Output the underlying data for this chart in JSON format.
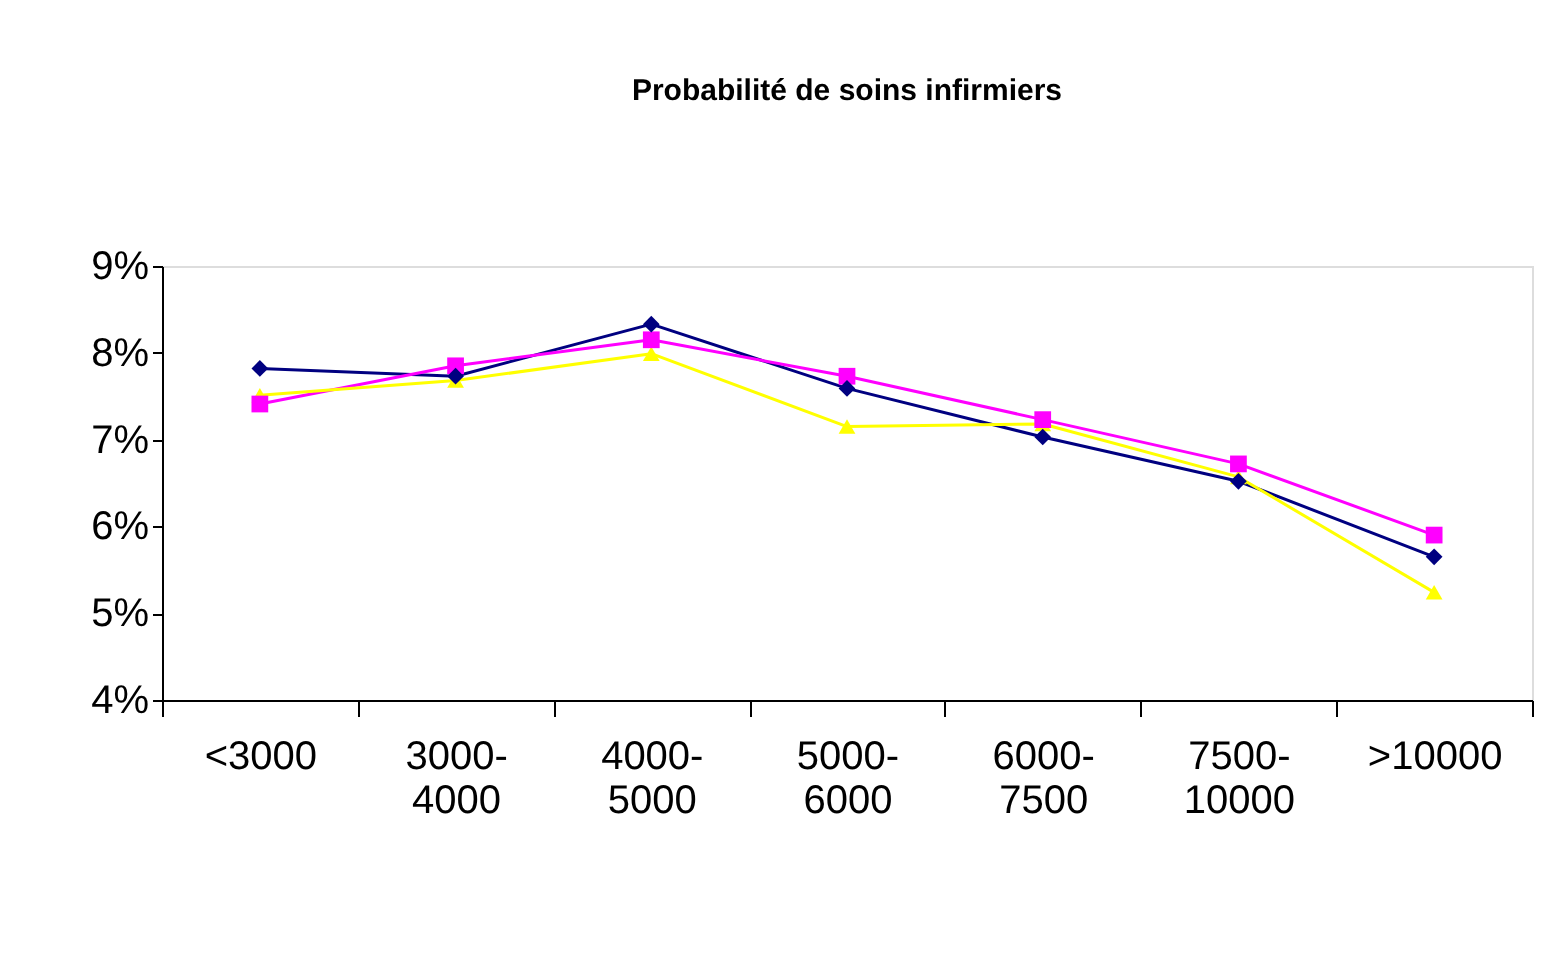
{
  "chart_data": {
    "type": "line",
    "title": "Probabilité de soins infirmiers",
    "categories": [
      "<3000",
      "3000-4000",
      "4000-5000",
      "5000-6000",
      "6000-7500",
      "7500-10000",
      ">10000"
    ],
    "series": [
      {
        "color": "#000080",
        "marker": "diamond",
        "values": [
          7.82,
          7.73,
          8.33,
          7.59,
          7.03,
          6.52,
          5.65
        ]
      },
      {
        "color": "#ff00ff",
        "marker": "square",
        "values": [
          7.41,
          7.85,
          8.15,
          7.73,
          7.23,
          6.72,
          5.9
        ]
      },
      {
        "color": "#ffff00",
        "marker": "triangle",
        "values": [
          7.51,
          7.68,
          7.99,
          7.15,
          7.18,
          6.57,
          5.24
        ]
      }
    ],
    "ylim": [
      4,
      9
    ],
    "yticks": [
      {
        "value": 4,
        "label": "4%"
      },
      {
        "value": 5,
        "label": "5%"
      },
      {
        "value": 6,
        "label": "6%"
      },
      {
        "value": 7,
        "label": "7%"
      },
      {
        "value": 8,
        "label": "8%"
      },
      {
        "value": 9,
        "label": "9%"
      }
    ],
    "grid": false,
    "legend": false
  }
}
